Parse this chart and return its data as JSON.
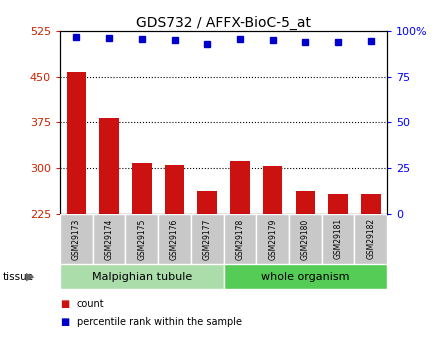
{
  "title": "GDS732 / AFFX-BioC-5_at",
  "samples": [
    "GSM29173",
    "GSM29174",
    "GSM29175",
    "GSM29176",
    "GSM29177",
    "GSM29178",
    "GSM29179",
    "GSM29180",
    "GSM29181",
    "GSM29182"
  ],
  "counts": [
    458,
    383,
    308,
    305,
    263,
    311,
    303,
    263,
    258,
    258
  ],
  "percentiles": [
    96.5,
    96.2,
    95.5,
    95.2,
    93.0,
    95.5,
    95.3,
    94.2,
    94.0,
    94.5
  ],
  "tissue_groups": [
    {
      "label": "Malpighian tubule",
      "start": 0,
      "end": 5,
      "color": "#aaddaa"
    },
    {
      "label": "whole organism",
      "start": 5,
      "end": 10,
      "color": "#55cc55"
    }
  ],
  "ylim_left": [
    225,
    525
  ],
  "ylim_right": [
    0,
    100
  ],
  "yticks_left": [
    225,
    300,
    375,
    450,
    525
  ],
  "yticks_right": [
    0,
    25,
    50,
    75,
    100
  ],
  "bar_color": "#cc1111",
  "dot_color": "#0000cc",
  "bar_width": 0.6,
  "grid_lines": [
    300,
    375,
    450
  ],
  "legend_items": [
    {
      "label": "count",
      "color": "#cc1111"
    },
    {
      "label": "percentile rank within the sample",
      "color": "#0000cc"
    }
  ],
  "tissue_label": "tissue",
  "background_color": "#ffffff",
  "sample_box_color": "#c8c8c8"
}
